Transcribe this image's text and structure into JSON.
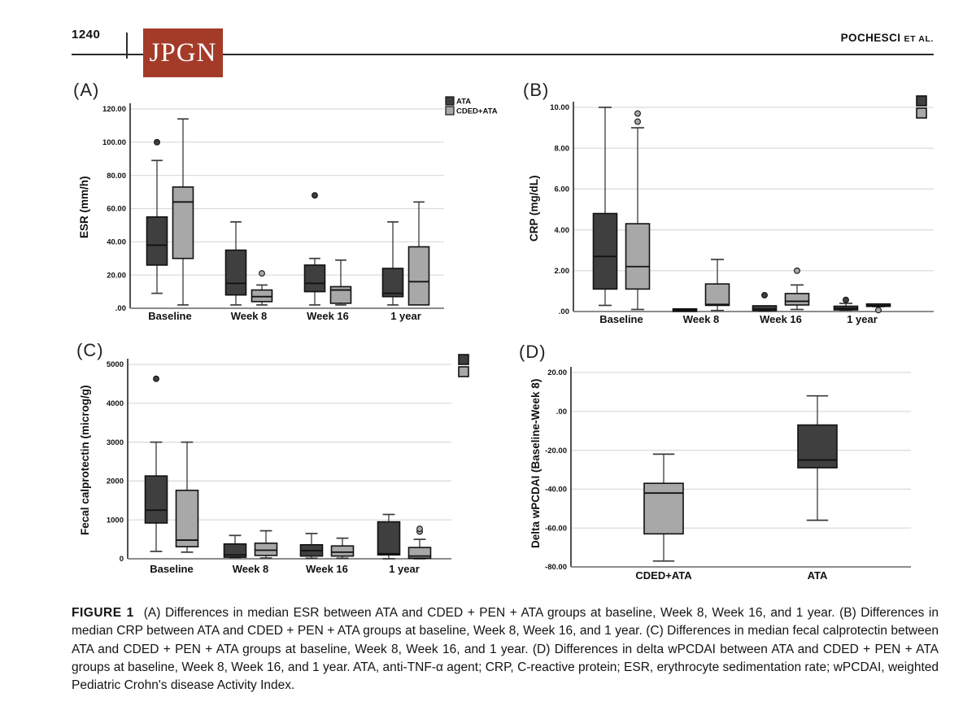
{
  "page": {
    "number": "1240",
    "journal_logo": "JPGN",
    "running_head_main": "POCHESCI",
    "running_head_suffix": "ET AL."
  },
  "colors": {
    "ATA": "#3f3f3f",
    "CDED+ATA": "#a8a8a8",
    "grid": "#d9d9d9",
    "axis": "#3c3c3c",
    "baseline_axis": "#8c8c8c",
    "box_stroke": "#111111",
    "logo_red": "#a43b29"
  },
  "caption": {
    "label": "FIGURE 1",
    "text": "(A) Differences in median ESR between ATA and CDED + PEN + ATA groups at baseline, Week 8, Week 16, and 1 year. (B) Differences in median CRP between ATA and CDED + PEN + ATA groups at baseline, Week 8, Week 16, and 1 year. (C) Differences in median fecal calprotectin between ATA and CDED + PEN + ATA groups at baseline, Week 8, Week 16, and 1 year. (D) Differences in delta wPCDAI between ATA and CDED + PEN + ATA groups at baseline, Week 8, Week 16, and 1 year. ATA, anti-TNF-α agent; CRP, C-reactive protein; ESR, erythrocyte sedimentation rate; wPCDAI, weighted Pediatric Crohn's disease Activity Index."
  },
  "chart_data": [
    {
      "panel": "A",
      "panel_label": "(A)",
      "type": "box",
      "ylabel": "ESR (mm/h)",
      "ylim": [
        0,
        120
      ],
      "yticks": [
        {
          "v": 0,
          "label": ".00"
        },
        {
          "v": 20,
          "label": "20.00"
        },
        {
          "v": 40,
          "label": "40.00"
        },
        {
          "v": 60,
          "label": "60.00"
        },
        {
          "v": 80,
          "label": "80.00"
        },
        {
          "v": 100,
          "label": "100.00"
        },
        {
          "v": 120,
          "label": "120.00"
        }
      ],
      "categories": [
        "Baseline",
        "Week 8",
        "Week 16",
        "1 year"
      ],
      "legend": [
        "ATA",
        "CDED+ATA"
      ],
      "groups": [
        {
          "category": "Baseline",
          "boxes": [
            {
              "series": "ATA",
              "lo": 9,
              "q1": 26,
              "med": 38,
              "q3": 55,
              "hi": 89,
              "outliers": [
                100
              ]
            },
            {
              "series": "CDED+ATA",
              "lo": 2,
              "q1": 30,
              "med": 64,
              "q3": 73,
              "hi": 114,
              "outliers": []
            }
          ]
        },
        {
          "category": "Week 8",
          "boxes": [
            {
              "series": "ATA",
              "lo": 2,
              "q1": 8,
              "med": 15,
              "q3": 35,
              "hi": 52,
              "outliers": []
            },
            {
              "series": "CDED+ATA",
              "lo": 2,
              "q1": 4,
              "med": 7,
              "q3": 11,
              "hi": 14,
              "outliers": [
                21
              ]
            }
          ]
        },
        {
          "category": "Week 16",
          "boxes": [
            {
              "series": "ATA",
              "lo": 2,
              "q1": 10,
              "med": 15,
              "q3": 26,
              "hi": 30,
              "outliers": [
                68
              ]
            },
            {
              "series": "CDED+ATA",
              "lo": 2,
              "q1": 3,
              "med": 11,
              "q3": 13,
              "hi": 29,
              "outliers": []
            }
          ]
        },
        {
          "category": "1 year",
          "boxes": [
            {
              "series": "ATA",
              "lo": 2,
              "q1": 7,
              "med": 9,
              "q3": 24,
              "hi": 52,
              "outliers": []
            },
            {
              "series": "CDED+ATA",
              "lo": 2,
              "q1": 2,
              "med": 16,
              "q3": 37,
              "hi": 64,
              "outliers": []
            }
          ]
        }
      ]
    },
    {
      "panel": "B",
      "panel_label": "(B)",
      "type": "box",
      "ylabel": "CRP (mg/dL)",
      "ylim": [
        0,
        10
      ],
      "yticks": [
        {
          "v": 0,
          "label": ".00"
        },
        {
          "v": 2,
          "label": "2.00"
        },
        {
          "v": 4,
          "label": "4.00"
        },
        {
          "v": 6,
          "label": "6.00"
        },
        {
          "v": 8,
          "label": "8.00"
        },
        {
          "v": 10,
          "label": "10.00"
        }
      ],
      "categories": [
        "Baseline",
        "Week 8",
        "Week 16",
        "1 year"
      ],
      "corner_swatches": [
        "ATA",
        "CDED+ATA"
      ],
      "groups": [
        {
          "category": "Baseline",
          "boxes": [
            {
              "series": "ATA",
              "lo": 0.3,
              "q1": 1.1,
              "med": 2.7,
              "q3": 4.8,
              "hi": 10.0,
              "outliers": []
            },
            {
              "series": "CDED+ATA",
              "lo": 0.1,
              "q1": 1.1,
              "med": 2.2,
              "q3": 4.3,
              "hi": 9.0,
              "outliers": [
                9.3,
                9.7
              ]
            }
          ]
        },
        {
          "category": "Week 8",
          "boxes": [
            {
              "series": "ATA",
              "lo": 0.02,
              "q1": 0.02,
              "med": 0.07,
              "q3": 0.13,
              "hi": 0.13,
              "outliers": []
            },
            {
              "series": "CDED+ATA",
              "lo": 0.05,
              "q1": 0.3,
              "med": 0.35,
              "q3": 1.35,
              "hi": 2.55,
              "outliers": []
            }
          ]
        },
        {
          "category": "Week 16",
          "boxes": [
            {
              "series": "ATA",
              "lo": 0.03,
              "q1": 0.04,
              "med": 0.12,
              "q3": 0.28,
              "hi": 0.28,
              "outliers": [
                0.8
              ]
            },
            {
              "series": "CDED+ATA",
              "lo": 0.1,
              "q1": 0.32,
              "med": 0.5,
              "q3": 0.88,
              "hi": 1.3,
              "outliers": [
                2.0
              ]
            }
          ]
        },
        {
          "category": "1 year",
          "boxes": [
            {
              "series": "ATA",
              "lo": 0.06,
              "q1": 0.08,
              "med": 0.15,
              "q3": 0.26,
              "hi": 0.4,
              "outliers": [
                0.57
              ]
            },
            {
              "series": "CDED+ATA",
              "lo": 0.24,
              "q1": 0.25,
              "med": 0.3,
              "q3": 0.37,
              "hi": 0.37,
              "outliers": [
                0.07
              ]
            }
          ]
        }
      ]
    },
    {
      "panel": "C",
      "panel_label": "(C)",
      "type": "box",
      "ylabel": "Fecal calprotectin  (microg/g)",
      "ylim": [
        0,
        5000
      ],
      "yticks": [
        {
          "v": 0,
          "label": "0"
        },
        {
          "v": 1000,
          "label": "1000"
        },
        {
          "v": 2000,
          "label": "2000"
        },
        {
          "v": 3000,
          "label": "3000"
        },
        {
          "v": 4000,
          "label": "4000"
        },
        {
          "v": 5000,
          "label": "5000"
        }
      ],
      "categories": [
        "Baseline",
        "Week 8",
        "Week 16",
        "1 year"
      ],
      "corner_swatches": [
        "ATA",
        "CDED+ATA"
      ],
      "groups": [
        {
          "category": "Baseline",
          "boxes": [
            {
              "series": "ATA",
              "lo": 190,
              "q1": 920,
              "med": 1250,
              "q3": 2130,
              "hi": 3000,
              "outliers": [
                4630
              ]
            },
            {
              "series": "CDED+ATA",
              "lo": 170,
              "q1": 310,
              "med": 480,
              "q3": 1760,
              "hi": 3000,
              "outliers": []
            }
          ]
        },
        {
          "category": "Week 8",
          "boxes": [
            {
              "series": "ATA",
              "lo": 30,
              "q1": 40,
              "med": 100,
              "q3": 380,
              "hi": 600,
              "outliers": []
            },
            {
              "series": "CDED+ATA",
              "lo": 20,
              "q1": 85,
              "med": 220,
              "q3": 400,
              "hi": 720,
              "outliers": []
            }
          ]
        },
        {
          "category": "Week 16",
          "boxes": [
            {
              "series": "ATA",
              "lo": 15,
              "q1": 70,
              "med": 210,
              "q3": 360,
              "hi": 650,
              "outliers": []
            },
            {
              "series": "CDED+ATA",
              "lo": 15,
              "q1": 70,
              "med": 170,
              "q3": 330,
              "hi": 530,
              "outliers": []
            }
          ]
        },
        {
          "category": "1 year",
          "boxes": [
            {
              "series": "ATA",
              "lo": 0,
              "q1": 100,
              "med": 130,
              "q3": 950,
              "hi": 1140,
              "outliers": []
            },
            {
              "series": "CDED+ATA",
              "lo": 0,
              "q1": 15,
              "med": 70,
              "q3": 290,
              "hi": 500,
              "outliers": [
                700,
                770
              ]
            }
          ]
        }
      ]
    },
    {
      "panel": "D",
      "panel_label": "(D)",
      "type": "box",
      "ylabel": "Delta wPCDAI (Baseline-Week 8)",
      "ylim": [
        -80,
        20
      ],
      "yticks": [
        {
          "v": -80,
          "label": "-80.00"
        },
        {
          "v": -60,
          "label": "-60.00"
        },
        {
          "v": -40,
          "label": "-40.00"
        },
        {
          "v": -20,
          "label": "-20.00"
        },
        {
          "v": 0,
          "label": ".00"
        },
        {
          "v": 20,
          "label": "20.00"
        }
      ],
      "categories": [
        "CDED+ATA",
        "ATA"
      ],
      "groups": [
        {
          "category": "CDED+ATA",
          "boxes": [
            {
              "series": "CDED+ATA",
              "lo": -77,
              "q1": -63,
              "med": -42,
              "q3": -37,
              "hi": -22,
              "outliers": []
            }
          ]
        },
        {
          "category": "ATA",
          "boxes": [
            {
              "series": "ATA",
              "lo": -56,
              "q1": -29,
              "med": -25,
              "q3": -7,
              "hi": 8,
              "outliers": []
            }
          ]
        }
      ]
    }
  ]
}
